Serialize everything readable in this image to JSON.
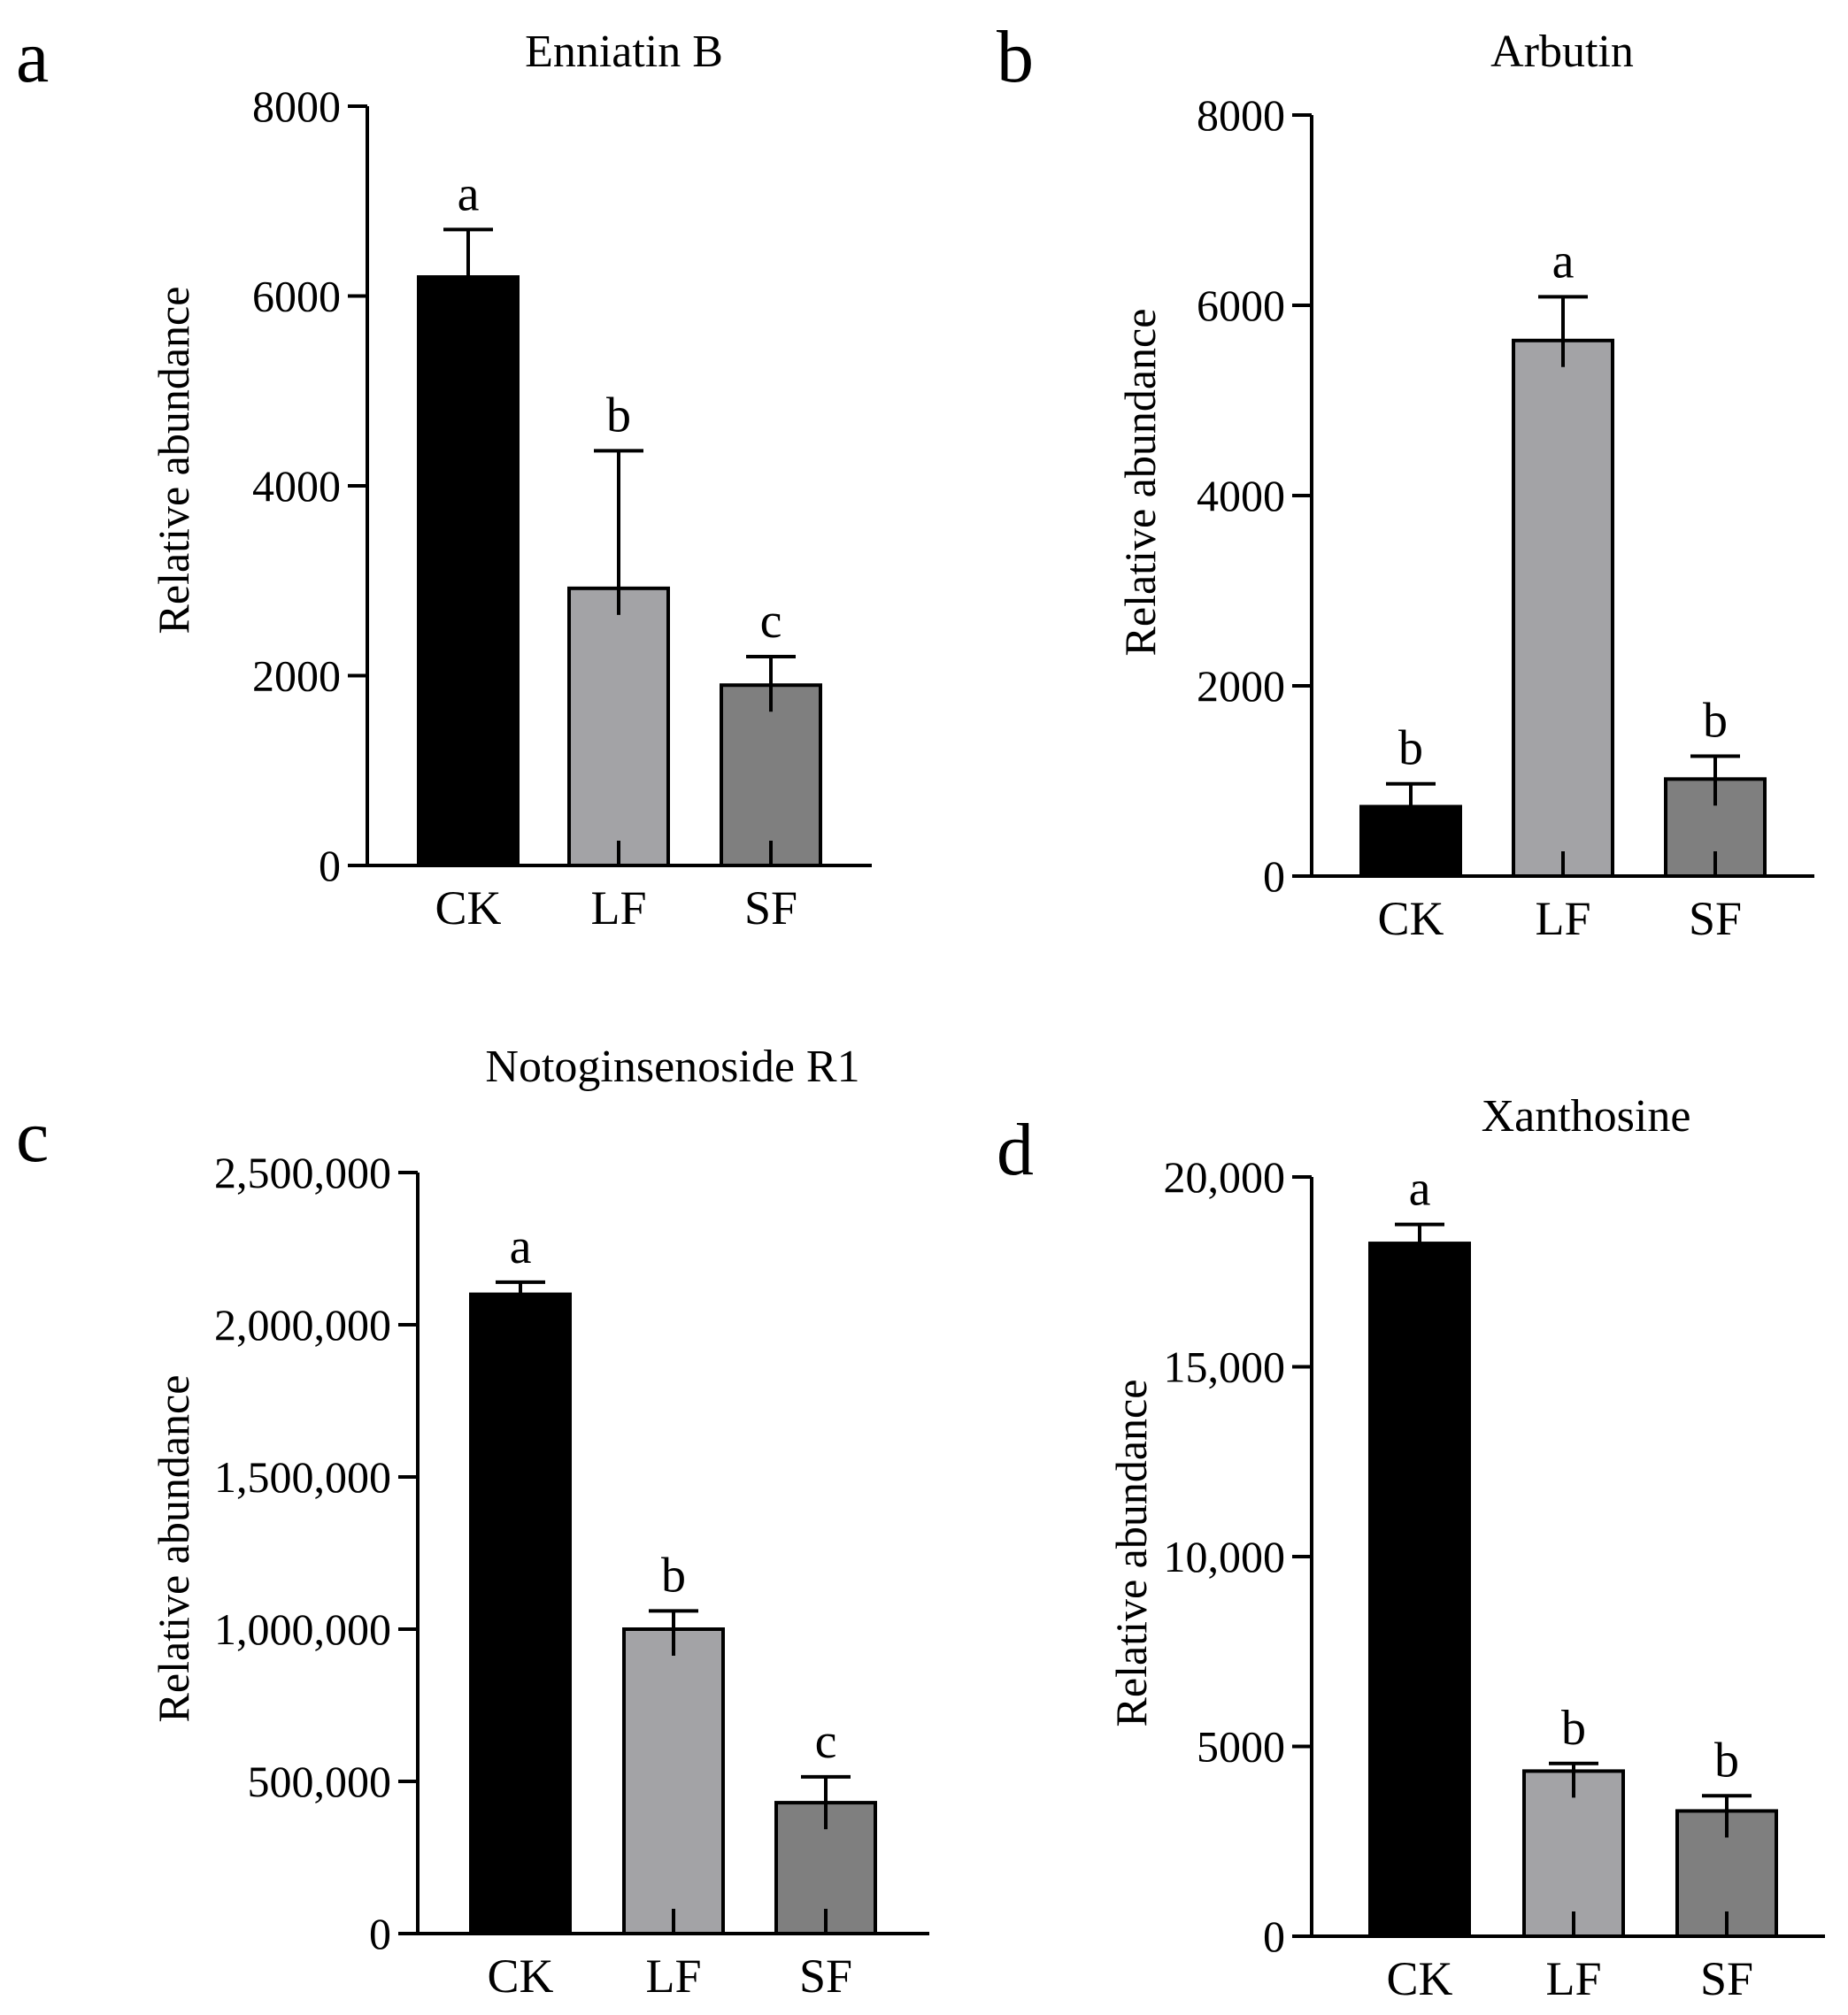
{
  "chart_data": [
    {
      "panel": "a",
      "type": "bar",
      "title": "Enniatin B",
      "ylabel": "Relative abundance",
      "ylim": [
        0,
        8000
      ],
      "yticks": [
        0,
        2000,
        4000,
        6000,
        8000
      ],
      "ytick_labels": [
        "0",
        "2000",
        "4000",
        "6000",
        "8000"
      ],
      "categories": [
        "CK",
        "LF",
        "SF"
      ],
      "values": [
        6200,
        2920,
        1900
      ],
      "errors": [
        500,
        1450,
        300
      ],
      "significance": [
        "a",
        "b",
        "c"
      ],
      "colors": [
        "#000000",
        "#a3a3a6",
        "#7f7f7f"
      ]
    },
    {
      "panel": "b",
      "type": "bar",
      "title": "Arbutin",
      "ylabel": "Relative abundance",
      "ylim": [
        0,
        8000
      ],
      "yticks": [
        0,
        2000,
        4000,
        6000,
        8000
      ],
      "ytick_labels": [
        "0",
        "2000",
        "4000",
        "6000",
        "8000"
      ],
      "categories": [
        "CK",
        "LF",
        "SF"
      ],
      "values": [
        730,
        5630,
        1020
      ],
      "errors": [
        240,
        460,
        240
      ],
      "significance": [
        "b",
        "a",
        "b"
      ],
      "colors": [
        "#000000",
        "#a3a3a6",
        "#7f7f7f"
      ]
    },
    {
      "panel": "c",
      "type": "bar",
      "title": "Notoginsenoside R1",
      "ylabel": "Relative abundance",
      "ylim": [
        0,
        2500000
      ],
      "yticks": [
        0,
        500000,
        1000000,
        1500000,
        2000000,
        2500000
      ],
      "ytick_labels": [
        "0",
        "500,000",
        "1,000,000",
        "1,500,000",
        "2,000,000",
        "2,500,000"
      ],
      "categories": [
        "CK",
        "LF",
        "SF"
      ],
      "values": [
        2100000,
        1000000,
        430000
      ],
      "errors": [
        40000,
        60000,
        85000
      ],
      "significance": [
        "a",
        "b",
        "c"
      ],
      "colors": [
        "#000000",
        "#a3a3a6",
        "#7f7f7f"
      ]
    },
    {
      "panel": "d",
      "type": "bar",
      "title": "Xanthosine",
      "ylabel": "Relative abundance",
      "ylim": [
        0,
        20000
      ],
      "yticks": [
        0,
        5000,
        10000,
        15000,
        20000
      ],
      "ytick_labels": [
        "0",
        "5000",
        "10,000",
        "15,000",
        "20,000"
      ],
      "categories": [
        "CK",
        "LF",
        "SF"
      ],
      "values": [
        18250,
        4350,
        3300
      ],
      "errors": [
        500,
        200,
        400
      ],
      "significance": [
        "a",
        "b",
        "b"
      ],
      "colors": [
        "#000000",
        "#a3a3a6",
        "#7f7f7f"
      ]
    }
  ]
}
